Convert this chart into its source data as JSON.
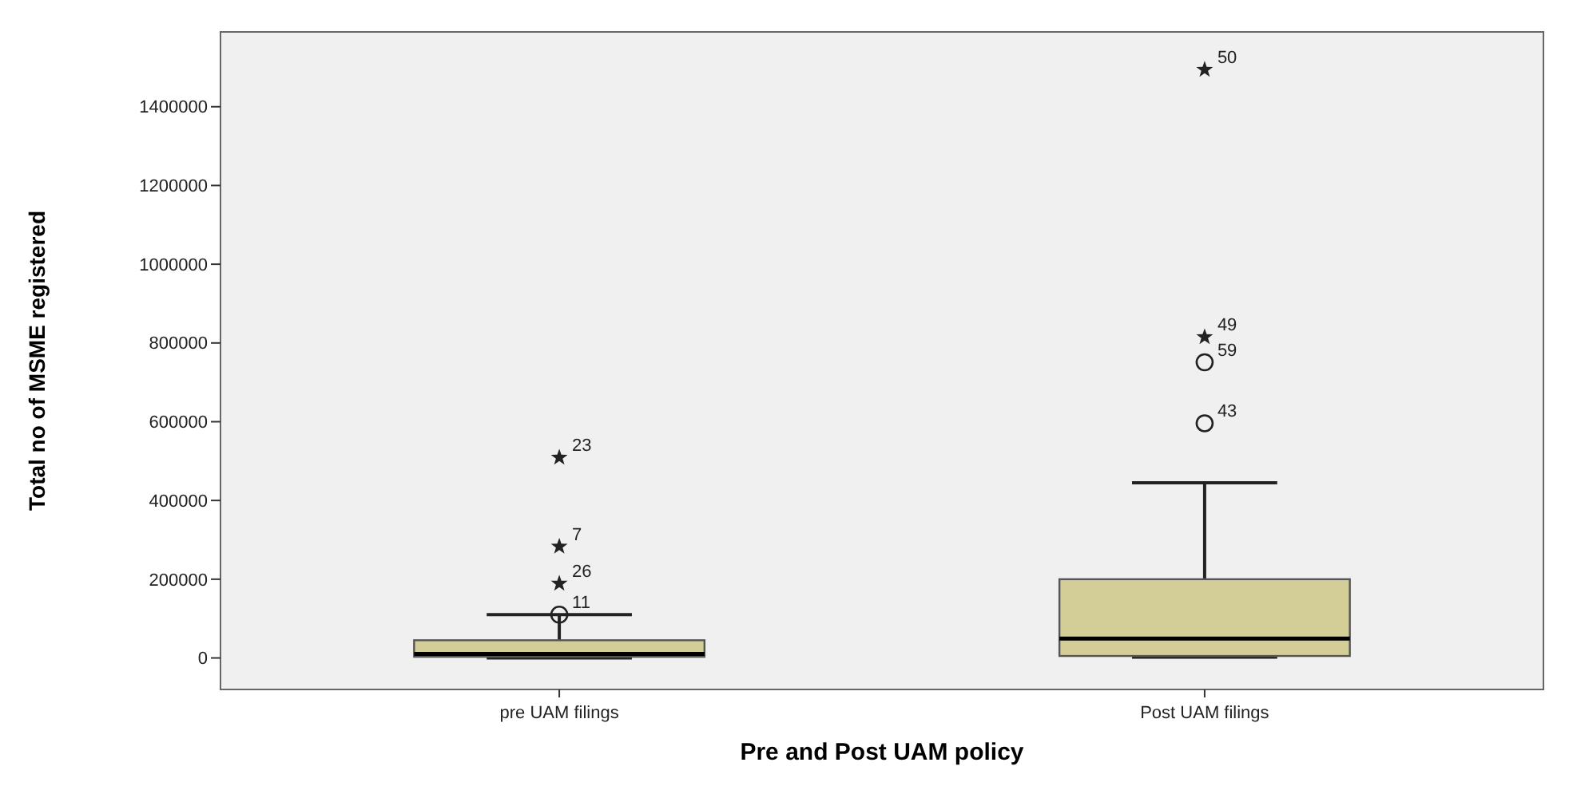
{
  "chart_data": {
    "type": "box",
    "xlabel": "Pre and Post UAM policy",
    "ylabel": "Total no of MSME registered",
    "categories": [
      "pre UAM filings",
      "Post UAM filings"
    ],
    "color": "#d3ce97",
    "boxes": [
      {
        "low": 0,
        "q1": 3000,
        "median": 10000,
        "q3": 45000,
        "high": 110000,
        "outliers": [
          110000,
          189000,
          283000,
          509000
        ]
      },
      {
        "low": 2000,
        "q1": 5000,
        "median": 49000,
        "q3": 200000,
        "high": 445000,
        "outliers": [
          596000,
          751000,
          815000,
          1494000
        ]
      }
    ],
    "annotations": [
      "11",
      "26",
      "7",
      "23",
      "43",
      "59",
      "49",
      "50"
    ],
    "ylim": [
      -80000,
      1590000
    ],
    "yticks": [
      0,
      200000,
      400000,
      600000,
      800000,
      1000000,
      1200000,
      1400000
    ],
    "grid": false
  }
}
